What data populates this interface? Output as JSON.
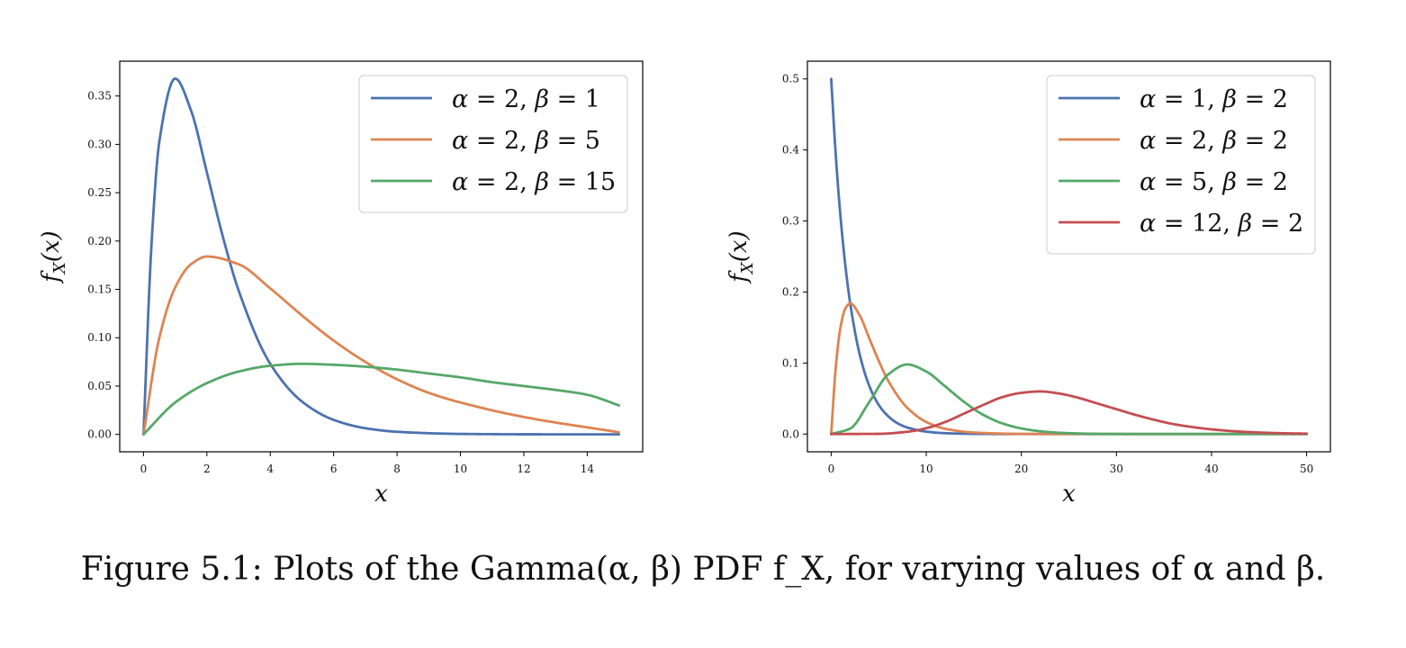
{
  "caption": "Figure 5.1: Plots of the Gamma(α, β) PDF f_X, for varying values of α and β.",
  "chart_data": [
    {
      "type": "line",
      "title": "",
      "xlabel": "x",
      "ylabel": "f_X(x)",
      "xlim": [
        -0.75,
        15.75
      ],
      "ylim": [
        -0.018,
        0.386
      ],
      "xticks": [
        0,
        2,
        4,
        6,
        8,
        10,
        12,
        14
      ],
      "xtick_labels": [
        "0",
        "2",
        "4",
        "6",
        "8",
        "10",
        "12",
        "14"
      ],
      "yticks": [
        0.0,
        0.05,
        0.1,
        0.15,
        0.2,
        0.25,
        0.3,
        0.35
      ],
      "ytick_labels": [
        "0.00",
        "0.05",
        "0.10",
        "0.15",
        "0.20",
        "0.25",
        "0.30",
        "0.35"
      ],
      "grid": false,
      "legend_position": "top-right",
      "series": [
        {
          "name": "α = 2, β = 1",
          "color": "#4c72b0",
          "x": [
            0,
            0.25,
            0.5,
            1,
            1.5,
            2,
            2.5,
            3,
            4,
            5,
            6,
            7,
            8,
            10,
            12,
            15
          ],
          "y": [
            0,
            0.195,
            0.303,
            0.368,
            0.335,
            0.271,
            0.205,
            0.149,
            0.073,
            0.034,
            0.015,
            0.0064,
            0.0027,
            0.0005,
            0.0001,
            0
          ]
        },
        {
          "name": "α = 2, β = 5",
          "color": "#dd8452",
          "x": [
            0,
            0.5,
            1,
            1.5,
            2,
            3,
            4,
            5,
            6,
            7,
            8,
            9,
            10,
            12,
            15
          ],
          "y": [
            0,
            0.1,
            0.152,
            0.176,
            0.184,
            0.176,
            0.151,
            0.123,
            0.097,
            0.075,
            0.057,
            0.043,
            0.033,
            0.018,
            0.0022
          ]
        },
        {
          "name": "α = 2, β = 15",
          "color": "#55a868",
          "x": [
            0,
            1,
            2,
            3,
            4,
            5,
            6,
            7,
            8,
            9,
            10,
            11,
            12,
            13,
            14,
            15
          ],
          "y": [
            0,
            0.033,
            0.053,
            0.065,
            0.071,
            0.073,
            0.072,
            0.07,
            0.067,
            0.063,
            0.059,
            0.054,
            0.05,
            0.046,
            0.041,
            0.03
          ]
        }
      ]
    },
    {
      "type": "line",
      "title": "",
      "xlabel": "x",
      "ylabel": "f_X(x)",
      "xlim": [
        -2.5,
        52.5
      ],
      "ylim": [
        -0.025,
        0.525
      ],
      "xticks": [
        0,
        10,
        20,
        30,
        40,
        50
      ],
      "xtick_labels": [
        "0",
        "10",
        "20",
        "30",
        "40",
        "50"
      ],
      "yticks": [
        0.0,
        0.1,
        0.2,
        0.3,
        0.4,
        0.5
      ],
      "ytick_labels": [
        "0.0",
        "0.1",
        "0.2",
        "0.3",
        "0.4",
        "0.5"
      ],
      "grid": false,
      "legend_position": "top-right",
      "series": [
        {
          "name": "α = 1, β = 2",
          "color": "#4c72b0",
          "x": [
            0,
            0.5,
            1,
            1.5,
            2,
            3,
            4,
            5,
            6,
            7,
            8,
            10,
            12,
            15,
            20,
            30,
            50
          ],
          "y": [
            0.5,
            0.389,
            0.303,
            0.236,
            0.184,
            0.112,
            0.068,
            0.041,
            0.025,
            0.015,
            0.0092,
            0.0034,
            0.0012,
            0.0003,
            0,
            0,
            0
          ]
        },
        {
          "name": "α = 2, β = 2",
          "color": "#dd8452",
          "x": [
            0,
            0.5,
            1,
            1.5,
            2,
            3,
            4,
            5,
            6,
            8,
            10,
            12,
            15,
            20,
            25,
            30,
            50
          ],
          "y": [
            0,
            0.097,
            0.152,
            0.177,
            0.184,
            0.167,
            0.135,
            0.103,
            0.075,
            0.037,
            0.017,
            0.0074,
            0.0021,
            0.0002,
            0,
            0,
            0
          ]
        },
        {
          "name": "α = 5, β = 2",
          "color": "#55a868",
          "x": [
            0,
            2,
            4,
            6,
            8,
            10,
            12,
            14,
            16,
            18,
            20,
            22,
            24,
            26,
            28,
            30,
            35,
            40,
            50
          ],
          "y": [
            0,
            0.0077,
            0.045,
            0.084,
            0.098,
            0.088,
            0.067,
            0.045,
            0.027,
            0.015,
            0.0079,
            0.0039,
            0.0018,
            0.0008,
            0.0003,
            0.0001,
            0,
            0,
            0
          ]
        },
        {
          "name": "α = 12, β = 2",
          "color": "#c44e52",
          "x": [
            0,
            5,
            8,
            10,
            12,
            14,
            16,
            18,
            20,
            22,
            24,
            26,
            28,
            30,
            32,
            34,
            36,
            38,
            40,
            42,
            44,
            46,
            48,
            50
          ],
          "y": [
            0,
            0.0003,
            0.0032,
            0.0082,
            0.017,
            0.029,
            0.041,
            0.052,
            0.058,
            0.06,
            0.057,
            0.051,
            0.043,
            0.035,
            0.027,
            0.02,
            0.014,
            0.0098,
            0.0066,
            0.0043,
            0.0027,
            0.0017,
            0.001,
            0.0006
          ]
        }
      ]
    }
  ]
}
